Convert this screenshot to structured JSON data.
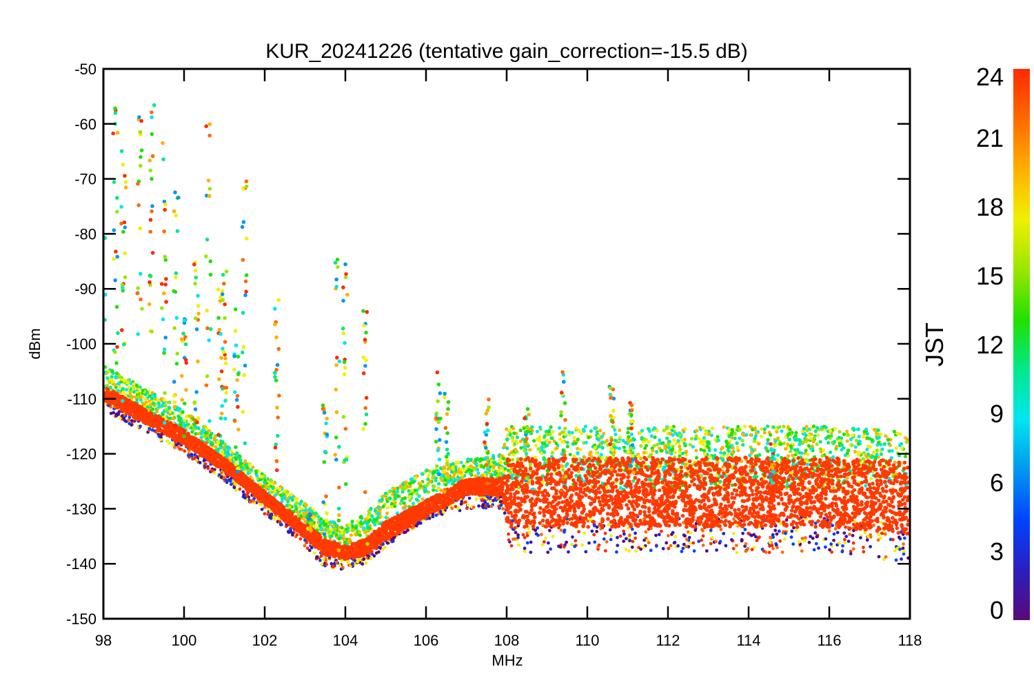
{
  "chart_data": {
    "type": "scatter",
    "title": "KUR_20241226 (tentative gain_correction=-15.5 dB)",
    "xlabel": "MHz",
    "ylabel": "dBm",
    "xlim": [
      98,
      118
    ],
    "ylim": [
      -150,
      -50
    ],
    "xticks": [
      98,
      100,
      102,
      104,
      106,
      108,
      110,
      112,
      114,
      116,
      118
    ],
    "yticks": [
      -50,
      -60,
      -70,
      -80,
      -90,
      -100,
      -110,
      -120,
      -130,
      -140,
      -150
    ],
    "grid": false,
    "colorbar": {
      "label": "JST",
      "range": [
        0,
        24
      ],
      "ticks": [
        0,
        3,
        6,
        9,
        12,
        15,
        18,
        21,
        24
      ],
      "colormap": "rainbow",
      "colors": [
        "#5a0a78",
        "#2a1fbf",
        "#0044ff",
        "#0098f0",
        "#00e6f0",
        "#00e88a",
        "#22e000",
        "#9be600",
        "#f0f000",
        "#ffb000",
        "#ff6a00",
        "#ff2a00"
      ]
    },
    "series": [
      {
        "values_note_free": true,
        "noise_floor": {
          "x": [
            98,
            99,
            100,
            101,
            102,
            103,
            103.5,
            104,
            104.5,
            105,
            106,
            107,
            107.9,
            108,
            110,
            112,
            114,
            116,
            118
          ],
          "y_median": [
            -109,
            -113,
            -117,
            -122,
            -128,
            -134,
            -137,
            -138,
            -137,
            -134,
            -130,
            -126,
            -126,
            -127,
            -127,
            -127,
            -127,
            -127,
            -128
          ],
          "y_spread_low": [
            -112,
            -116,
            -120,
            -125,
            -131,
            -137,
            -141,
            -141,
            -140,
            -137,
            -132,
            -130,
            -130,
            -138,
            -138,
            -138,
            -138,
            -138,
            -140
          ],
          "y_spread_high": [
            -104,
            -108,
            -112,
            -118,
            -124,
            -129,
            -132,
            -133,
            -131,
            -127,
            -123,
            -121,
            -120,
            -115,
            -115,
            -115,
            -115,
            -115,
            -116
          ]
        },
        "carriers": [
          {
            "x": 98.0,
            "peak": -79
          },
          {
            "x": 98.3,
            "peak": -57
          },
          {
            "x": 98.5,
            "peak": -64
          },
          {
            "x": 98.9,
            "peak": -52
          },
          {
            "x": 99.2,
            "peak": -53
          },
          {
            "x": 99.5,
            "peak": -60
          },
          {
            "x": 99.8,
            "peak": -72
          },
          {
            "x": 100.0,
            "peak": -95
          },
          {
            "x": 100.3,
            "peak": -85
          },
          {
            "x": 100.6,
            "peak": -60
          },
          {
            "x": 100.9,
            "peak": -80
          },
          {
            "x": 101.0,
            "peak": -86
          },
          {
            "x": 101.3,
            "peak": -90
          },
          {
            "x": 101.5,
            "peak": -70
          },
          {
            "x": 102.3,
            "peak": -92
          },
          {
            "x": 103.1,
            "peak": -130
          },
          {
            "x": 103.5,
            "peak": -111
          },
          {
            "x": 103.8,
            "peak": -82
          },
          {
            "x": 104.0,
            "peak": -81
          },
          {
            "x": 104.5,
            "peak": -92
          },
          {
            "x": 106.3,
            "peak": -104
          },
          {
            "x": 106.5,
            "peak": -108
          },
          {
            "x": 107.5,
            "peak": -110
          },
          {
            "x": 108.5,
            "peak": -111
          },
          {
            "x": 109.4,
            "peak": -105
          },
          {
            "x": 110.6,
            "peak": -107
          },
          {
            "x": 111.1,
            "peak": -110
          },
          {
            "x": 114.6,
            "peak": -118
          }
        ]
      }
    ]
  }
}
